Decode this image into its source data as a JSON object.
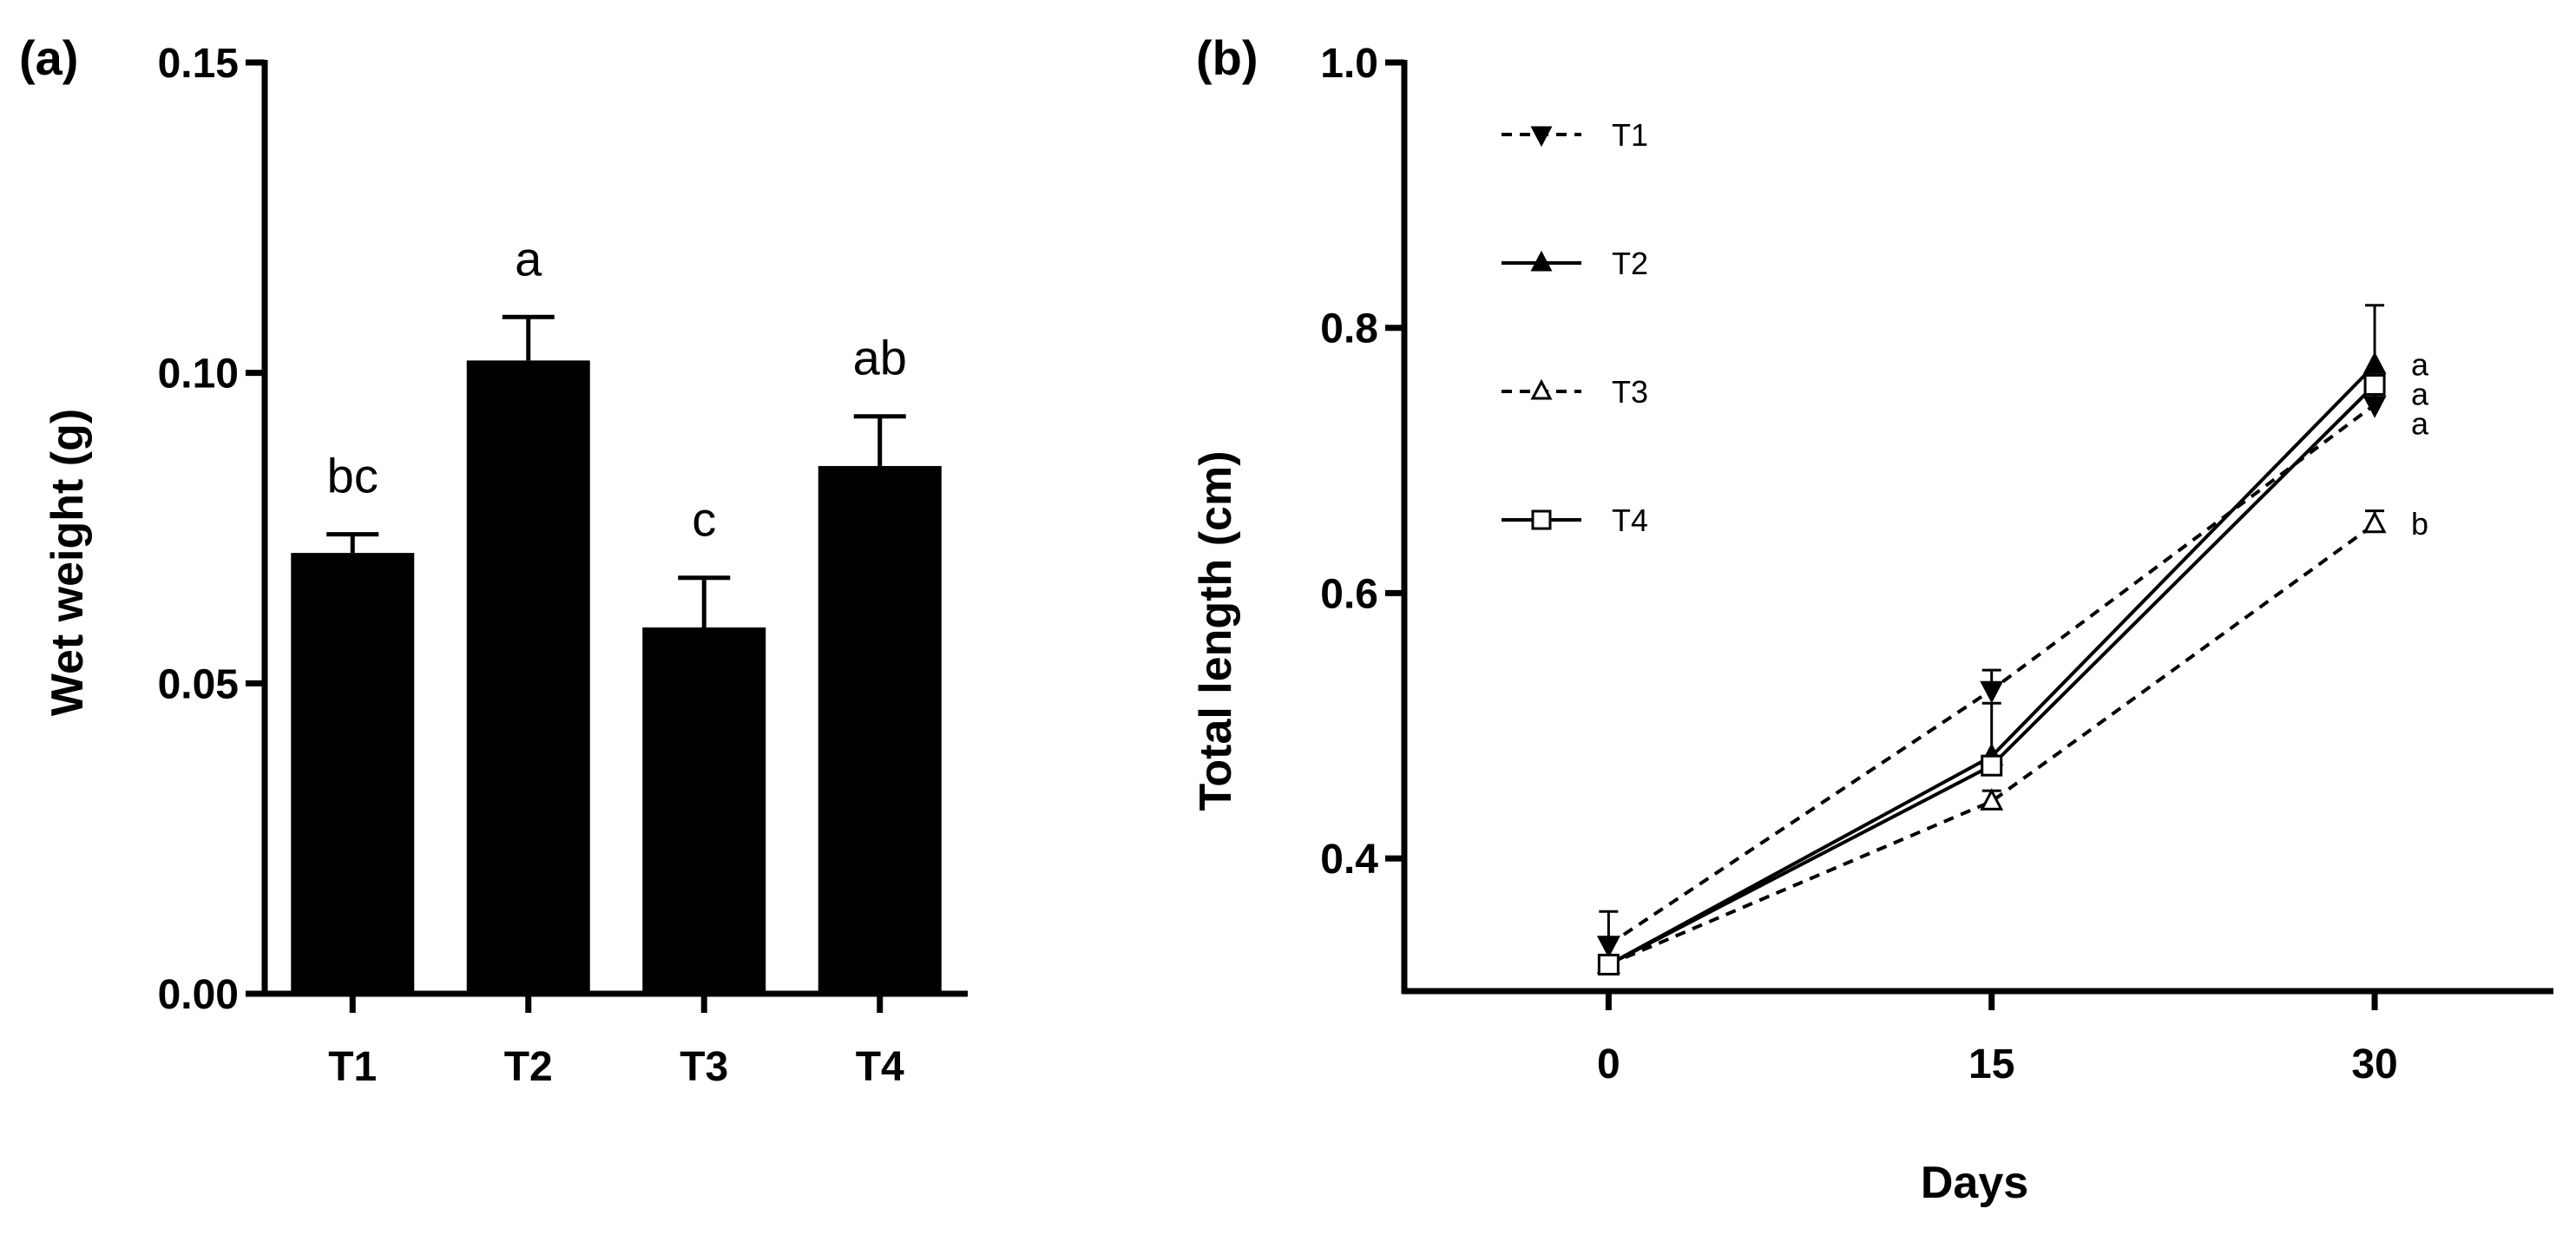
{
  "chart_data": [
    {
      "panel": "(a)",
      "type": "bar",
      "categories": [
        "T1",
        "T2",
        "T3",
        "T4"
      ],
      "values": [
        0.071,
        0.102,
        0.059,
        0.085
      ],
      "errors": [
        0.003,
        0.007,
        0.008,
        0.008
      ],
      "sig_letters": [
        "bc",
        "a",
        "c",
        "ab"
      ],
      "ylabel": "Wet weight (g)",
      "xlabel": "",
      "ylim": [
        0,
        0.15
      ],
      "yticks": [
        0.0,
        0.05,
        0.1,
        0.15
      ],
      "ytick_labels": [
        "0.00",
        "0.05",
        "0.10",
        "0.15"
      ],
      "bar_color": "#000000"
    },
    {
      "panel": "(b)",
      "type": "line",
      "xlabel": "Days",
      "ylabel": "Total length (cm)",
      "x": [
        0,
        15,
        30
      ],
      "xlim": [
        -8,
        37
      ],
      "xticks": [
        0,
        15,
        30
      ],
      "xtick_labels": [
        "0",
        "15",
        "30"
      ],
      "ylim": [
        0.3,
        1.0
      ],
      "yticks": [
        0.4,
        0.6,
        0.8,
        1.0
      ],
      "ytick_labels": [
        "0.4",
        "0.6",
        "0.8",
        "1.0"
      ],
      "legend_position": "top-left",
      "series": [
        {
          "name": "T1",
          "values": [
            0.335,
            0.527,
            0.742
          ],
          "errors": [
            0.025,
            0.015,
            0.01
          ],
          "line": "dashed",
          "marker": "triangle-down",
          "filled": true,
          "sig": "a"
        },
        {
          "name": "T2",
          "values": [
            0.32,
            0.477,
            0.772
          ],
          "errors": [
            0.005,
            0.04,
            0.045
          ],
          "line": "solid",
          "marker": "triangle-up",
          "filled": true,
          "sig": "a"
        },
        {
          "name": "T3",
          "values": [
            0.32,
            0.443,
            0.652
          ],
          "errors": [
            0.005,
            0.008,
            0.01
          ],
          "line": "dashed",
          "marker": "triangle-up",
          "filled": false,
          "sig": "b"
        },
        {
          "name": "T4",
          "values": [
            0.32,
            0.47,
            0.757
          ],
          "errors": [
            0.005,
            0.005,
            0.01
          ],
          "line": "solid",
          "marker": "square",
          "filled": false,
          "sig": "a"
        }
      ]
    }
  ]
}
